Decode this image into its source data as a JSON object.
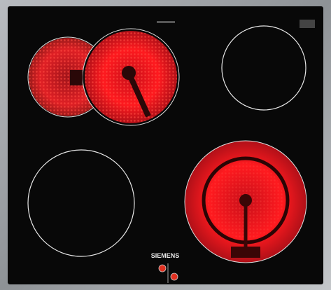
{
  "brand": "SIEMENS"
}
